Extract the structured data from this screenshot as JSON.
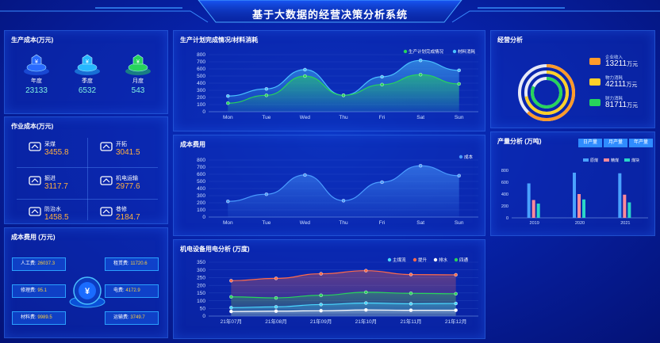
{
  "header": {
    "title": "基于大数据的经营决策分析系统"
  },
  "production_cost": {
    "title": "生产成本(万元)",
    "items": [
      {
        "label": "年度",
        "value": "23133",
        "color": "#2a6bff"
      },
      {
        "label": "季度",
        "value": "6532",
        "color": "#27b8ff"
      },
      {
        "label": "月度",
        "value": "543",
        "color": "#27d35c"
      }
    ]
  },
  "operation_cost": {
    "title": "作业成本(万元)",
    "items": [
      {
        "label": "采煤",
        "value": "3455.8",
        "icon": "coal-mining-icon"
      },
      {
        "label": "开拓",
        "value": "3041.5",
        "icon": "excavation-icon"
      },
      {
        "label": "掘进",
        "value": "3117.7",
        "icon": "tunneling-icon"
      },
      {
        "label": "机电运输",
        "value": "2977.6",
        "icon": "transport-icon"
      },
      {
        "label": "防治水",
        "value": "1458.5",
        "icon": "water-icon"
      },
      {
        "label": "巷修",
        "value": "2184.7",
        "icon": "repair-icon"
      }
    ]
  },
  "cost_expense": {
    "title": "成本费用 (万元)",
    "left": [
      {
        "label": "人工费:",
        "value": "26037.3"
      },
      {
        "label": "修理费:",
        "value": "95.1"
      },
      {
        "label": "材料费:",
        "value": "9989.5"
      }
    ],
    "right": [
      {
        "label": "租赁费:",
        "value": "11720.6"
      },
      {
        "label": "电费:",
        "value": "4172.9"
      },
      {
        "label": "运输费:",
        "value": "3749.7"
      }
    ]
  },
  "business": {
    "title": "经营分析",
    "items": [
      {
        "label": "企业收入",
        "value": "13211",
        "unit": "万元",
        "color": "#ff9a2a"
      },
      {
        "label": "物力消耗",
        "value": "42111",
        "unit": "万元",
        "color": "#ffd02a"
      },
      {
        "label": "财力消耗",
        "value": "81711",
        "unit": "万元",
        "color": "#27d35c"
      }
    ]
  },
  "output": {
    "title": "产量分析 (万吨)",
    "tabs": [
      "日产量",
      "月产量",
      "年产量"
    ],
    "chart_data": {
      "type": "bar",
      "categories": [
        "2019",
        "2020",
        "2021"
      ],
      "ylim": [
        0,
        800
      ],
      "yticks": [
        0,
        200,
        400,
        600,
        800
      ],
      "series": [
        {
          "name": "原煤",
          "values": [
            580,
            760,
            750
          ],
          "color": "#4aa2ff"
        },
        {
          "name": "精煤",
          "values": [
            300,
            400,
            390
          ],
          "color": "#ff8a9a"
        },
        {
          "name": "煤块",
          "values": [
            240,
            310,
            260
          ],
          "color": "#2ad6c8"
        }
      ]
    }
  },
  "plan_chart": {
    "title": "生产计划完成情况/材料消耗",
    "chart_data": {
      "type": "area",
      "categories": [
        "Mon",
        "Tue",
        "Wed",
        "Thu",
        "Fri",
        "Sat",
        "Sun"
      ],
      "ylim": [
        0,
        800
      ],
      "yticks": [
        0,
        100,
        200,
        300,
        400,
        500,
        600,
        700,
        800
      ],
      "series": [
        {
          "name": "生产计划完成情况",
          "values": [
            120,
            230,
            500,
            230,
            380,
            520,
            390
          ],
          "color": "#27d35c"
        },
        {
          "name": "材料消耗",
          "values": [
            220,
            320,
            590,
            230,
            490,
            720,
            580
          ],
          "color": "#4ac0ff"
        }
      ]
    }
  },
  "cost_chart": {
    "title": "成本费用",
    "chart_data": {
      "type": "area",
      "categories": [
        "Mon",
        "Tue",
        "Wed",
        "Thu",
        "Fri",
        "Sat",
        "Sun"
      ],
      "ylim": [
        0,
        800
      ],
      "yticks": [
        0,
        100,
        200,
        300,
        400,
        500,
        600,
        700,
        800
      ],
      "series": [
        {
          "name": "成本",
          "values": [
            220,
            320,
            590,
            230,
            490,
            720,
            580
          ],
          "color": "#4a9cff"
        }
      ]
    }
  },
  "power_chart": {
    "title": "机电设备用电分析 (万度)",
    "chart_data": {
      "type": "area",
      "categories": [
        "21年07月",
        "21年08月",
        "21年09月",
        "21年10月",
        "21年11月",
        "21年12月"
      ],
      "ylim": [
        0,
        350
      ],
      "yticks": [
        0,
        50,
        100,
        150,
        200,
        250,
        300,
        350
      ],
      "series": [
        {
          "name": "主煤流",
          "values": [
            55,
            60,
            75,
            85,
            80,
            82
          ],
          "color": "#4ad8ff"
        },
        {
          "name": "提升",
          "values": [
            230,
            245,
            275,
            295,
            270,
            268
          ],
          "color": "#ff6a4a"
        },
        {
          "name": "排水",
          "values": [
            30,
            32,
            35,
            40,
            38,
            38
          ],
          "color": "#ffffff"
        },
        {
          "name": "四通",
          "values": [
            125,
            118,
            135,
            155,
            148,
            145
          ],
          "color": "#27d35c"
        }
      ]
    }
  }
}
